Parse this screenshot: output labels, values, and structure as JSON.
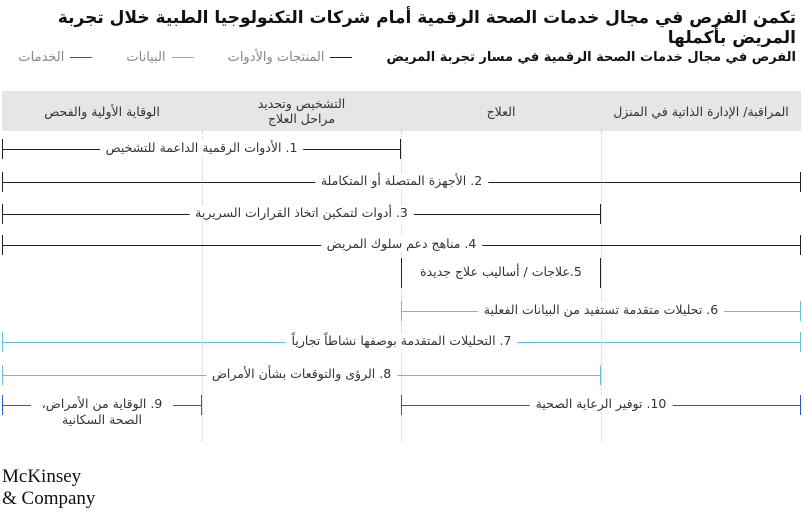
{
  "title": "تكمن الفرص في مجال خدمات الصحة الرقمية أمام شركات التكنولوجيا الطبية خلال تجربة المريض بأكملها",
  "legend": [
    {
      "label": "الفرص في مجال خدمات الصحة الرقمية في مسار تجربة المريض",
      "color": ""
    },
    {
      "label": "المنتجات والأدوات",
      "color": "#222222"
    },
    {
      "label": "البيانات",
      "color": "#5bc0eb"
    },
    {
      "label": "الخدمات",
      "color": "#2251ff"
    }
  ],
  "stages": [
    "المراقبة/ الإدارة الذاتية في المنزل",
    "العلاج",
    "التشخيص وتحديد مراحل العلاج",
    "الوقاية الأولية والفحص"
  ],
  "items": [
    {
      "label": "1. الأدوات الرقمية الداعمة للتشخيص",
      "category": "products",
      "stages": [
        2,
        3
      ]
    },
    {
      "label": "2. الأجهزة المتصلة أو المتكاملة",
      "category": "products",
      "stages": [
        0,
        3
      ]
    },
    {
      "label": "3. أدوات لتمكين اتخاذ القرارات السريرية",
      "category": "products",
      "stages": [
        1,
        3
      ]
    },
    {
      "label": "4. مناهج دعم سلوك المريض",
      "category": "products",
      "stages": [
        0,
        3
      ]
    },
    {
      "label": "5.علاجات / أساليب علاج جديدة",
      "category": "products",
      "stages": [
        1,
        1
      ]
    },
    {
      "label": "6. تحليلات متقدمة تستفيد من البيانات الفعلية",
      "category": "data",
      "stages": [
        0,
        1
      ]
    },
    {
      "label": "7. التحليلات المتقدمة بوصفها نشاطاً تجارياً",
      "category": "data",
      "stages": [
        0,
        3
      ]
    },
    {
      "label": "8. الرؤى والتوقعات بشأن الأمراض",
      "category": "data",
      "stages": [
        1,
        3
      ]
    },
    {
      "label": "9. الوقاية من الأمراض، الصحة السكانية",
      "category": "services",
      "stages": [
        3,
        3
      ]
    },
    {
      "label": "10. توفير الرعاية الصحية",
      "category": "services",
      "stages": [
        0,
        1
      ]
    }
  ],
  "colors": {
    "products": "#222222",
    "data": "#5bc0eb",
    "services": "#2251ff"
  },
  "logo": "McKinsey & Company"
}
